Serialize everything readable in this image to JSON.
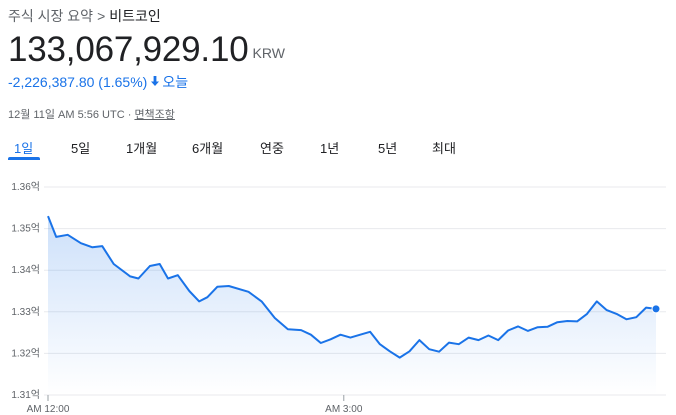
{
  "breadcrumb": {
    "parent": "주식 시장 요약",
    "separator": ">",
    "current": "비트코인"
  },
  "quote": {
    "price": "133,067,929.10",
    "currency": "KRW",
    "change": "-2,226,387.80 (1.65%)",
    "direction_icon": "arrow-down-icon",
    "period": "오늘"
  },
  "meta": {
    "timestamp": "12월 11일 AM 5:56 UTC",
    "dot": "·",
    "disclaimer": "면책조항"
  },
  "tabs": [
    {
      "label": "1일",
      "active": true
    },
    {
      "label": "5일",
      "active": false
    },
    {
      "label": "1개월",
      "active": false
    },
    {
      "label": "6개월",
      "active": false
    },
    {
      "label": "연중",
      "active": false
    },
    {
      "label": "1년",
      "active": false
    },
    {
      "label": "5년",
      "active": false
    },
    {
      "label": "최대",
      "active": false
    }
  ],
  "colors": {
    "line": "#1a73e8",
    "accent": "#1a73e8",
    "grid": "#e8eaed"
  },
  "chart_data": {
    "type": "area",
    "ylim": [
      1.31,
      1.36
    ],
    "yticks": [
      "1.36억",
      "1.35억",
      "1.34억",
      "1.33억",
      "1.32억",
      "1.31억"
    ],
    "ytick_values": [
      1.36,
      1.35,
      1.34,
      1.33,
      1.32,
      1.31
    ],
    "xticks": [
      "AM 12:00",
      "AM 3:00"
    ],
    "xtick_values": [
      0,
      180
    ],
    "x_unit": "minutes after AM 12:00",
    "y_unit": "억 KRW",
    "grid": true,
    "x": [
      0,
      5,
      12,
      20,
      27,
      33,
      40,
      50,
      55,
      62,
      68,
      73,
      79,
      86,
      92,
      97,
      103,
      110,
      122,
      130,
      138,
      146,
      154,
      160,
      166,
      172,
      178,
      184,
      190,
      196,
      202,
      208,
      214,
      220,
      226,
      232,
      238,
      244,
      250,
      256,
      262,
      268,
      274,
      280,
      286,
      292,
      298,
      304,
      310,
      316,
      322,
      328,
      334,
      340,
      346,
      352,
      358,
      364,
      370
    ],
    "values": [
      1.353,
      1.348,
      1.3485,
      1.3465,
      1.3455,
      1.3458,
      1.3415,
      1.3385,
      1.338,
      1.341,
      1.3415,
      1.338,
      1.3388,
      1.335,
      1.3325,
      1.3335,
      1.336,
      1.3362,
      1.3348,
      1.3325,
      1.3285,
      1.3258,
      1.3256,
      1.3245,
      1.3225,
      1.3234,
      1.3245,
      1.3238,
      1.3245,
      1.3252,
      1.3222,
      1.3205,
      1.319,
      1.3205,
      1.3232,
      1.321,
      1.3204,
      1.3226,
      1.3222,
      1.3238,
      1.3232,
      1.3243,
      1.3232,
      1.3255,
      1.3265,
      1.3254,
      1.3263,
      1.3264,
      1.3275,
      1.3278,
      1.3277,
      1.3295,
      1.3325,
      1.3304,
      1.3295,
      1.3282,
      1.3287,
      1.331,
      1.3307
    ]
  }
}
